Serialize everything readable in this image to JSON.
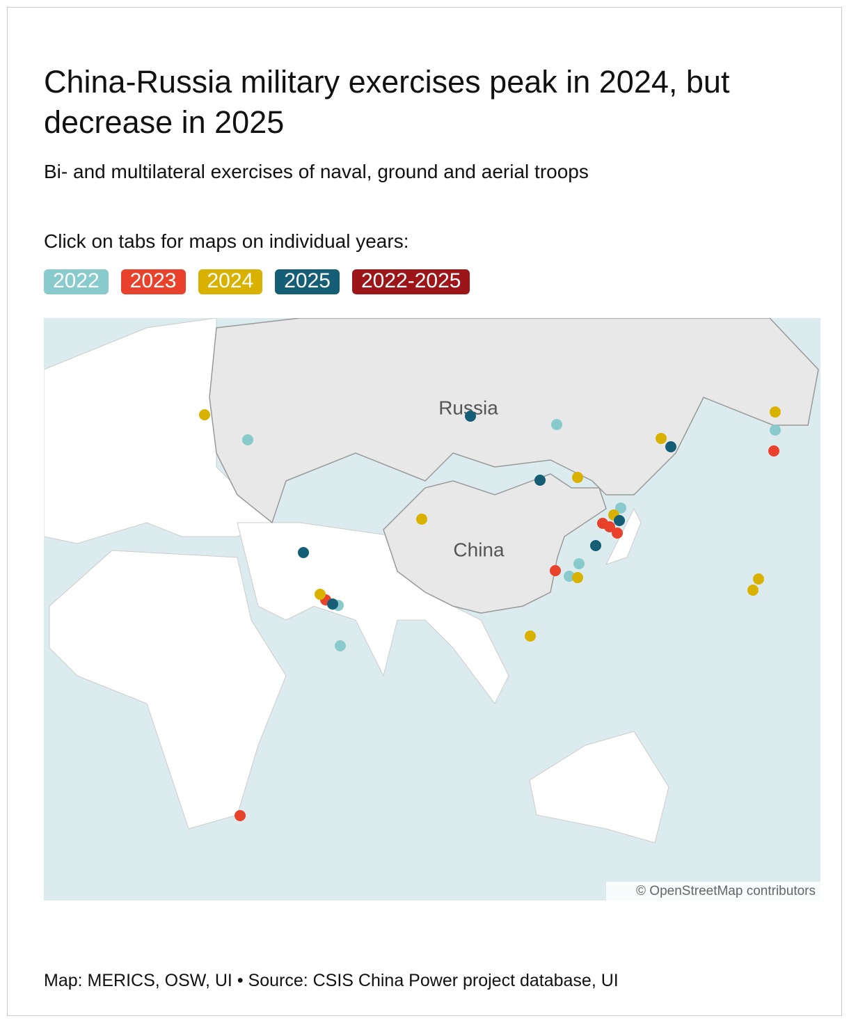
{
  "header": {
    "title": "China-Russia military exercises peak in 2024, but decrease in 2025",
    "subtitle": "Bi- and multilateral exercises of naval, ground and aerial troops",
    "instruction": "Click on tabs for maps on individual years:"
  },
  "tabs": [
    {
      "label": "2022",
      "color": "#89cbcd"
    },
    {
      "label": "2023",
      "color": "#e8422c"
    },
    {
      "label": "2024",
      "color": "#d9b100"
    },
    {
      "label": "2025",
      "color": "#155e76"
    },
    {
      "label": "2022-2025",
      "color": "#9b1519"
    }
  ],
  "map": {
    "labels": [
      "Russia",
      "China"
    ],
    "attribution": "© OpenStreetMap contributors"
  },
  "footer": "Map: MERICS, OSW, UI • Source: CSIS China Power project database, UI"
}
